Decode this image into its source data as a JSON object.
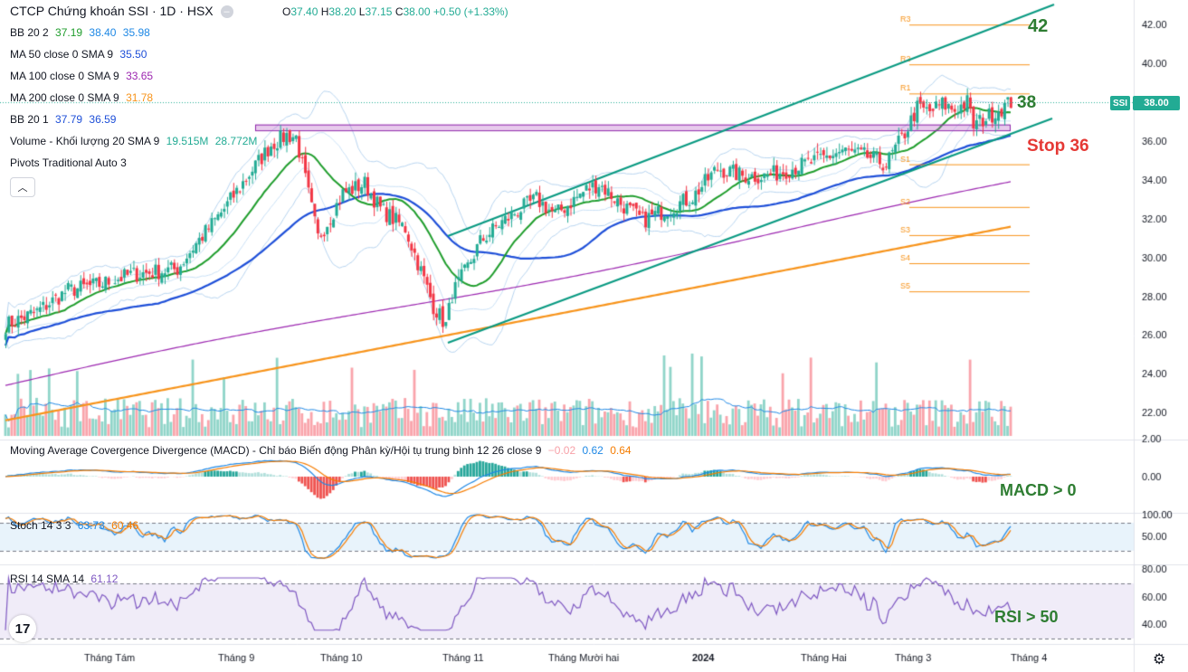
{
  "header": {
    "title": "CTCP Chứng khoán SSI · 1D · HSX",
    "ohlc": {
      "o_label": "O",
      "o": "37.40",
      "h_label": "H",
      "h": "38.20",
      "l_label": "L",
      "l": "37.15",
      "c_label": "C",
      "c": "38.00",
      "change": "+0.50 (+1.33%)"
    }
  },
  "legends": {
    "bb2": {
      "label": "BB 20 2",
      "v1": "37.19",
      "v2": "38.40",
      "v3": "35.98"
    },
    "ma50": {
      "label": "MA 50 close 0 SMA 9",
      "v": "35.50"
    },
    "ma100": {
      "label": "MA 100 close 0 SMA 9",
      "v": "33.65"
    },
    "ma200": {
      "label": "MA 200 close 0 SMA 9",
      "v": "31.78"
    },
    "bb1": {
      "label": "BB 20 1",
      "v1": "37.79",
      "v2": "36.59"
    },
    "volume": {
      "label": "Volume - Khối lượng 20 SMA 9",
      "v1": "19.515M",
      "v2": "28.772M"
    },
    "pivots": {
      "label": "Pivots Traditional Auto 3"
    },
    "macd": {
      "label": "Moving Average Covergence Divergence (MACD) - Chỉ báo Biến động Phân kỳ/Hội tụ trung bình 12 26 close 9",
      "v1": "−0.02",
      "v2": "0.62",
      "v3": "0.64"
    },
    "stoch": {
      "label": "Stoch 14 3 3",
      "v1": "63.73",
      "v2": "60.46"
    },
    "rsi": {
      "label": "RSI 14 SMA 14",
      "v": "61.12"
    }
  },
  "symbol_tag": "SSI",
  "last_price": "38.00",
  "annotations": {
    "a42": "42",
    "a38": "38",
    "stop": "Stop 36",
    "macd": "MACD > 0",
    "rsi": "RSI > 50"
  },
  "pivot_labels": [
    "R3",
    "R2",
    "R1",
    "S1",
    "S2",
    "S3",
    "S4",
    "S5"
  ],
  "logo_text": "17",
  "colors": {
    "up": "#22ab94",
    "down": "#f23645",
    "accent": "#089981",
    "ma50": "#1e4fd8",
    "ma100": "#9c27b0",
    "ma200": "#f7931a",
    "bb": "#1f9d2c",
    "pivot": "#f7931a"
  },
  "chart_data": {
    "type": "candlestick",
    "price_axis": {
      "ticks": [
        "42.00",
        "40.00",
        "38.00",
        "36.00",
        "34.00",
        "32.00",
        "30.00",
        "28.00",
        "26.00",
        "24.00",
        "22.00"
      ]
    },
    "time_axis": {
      "ticks": [
        "Tháng Tám",
        "Tháng 9",
        "Tháng 10",
        "Tháng 11",
        "Tháng Mười hai",
        "2024",
        "Tháng Hai",
        "Tháng 3",
        "Tháng 4"
      ]
    },
    "macd_axis": {
      "ticks": [
        "2.00",
        "0.00"
      ]
    },
    "stoch_axis": {
      "ticks": [
        "100.00",
        "50.00"
      ]
    },
    "rsi_axis": {
      "ticks": [
        "80.00",
        "60.00",
        "40.00"
      ]
    },
    "pivots": {
      "R3": 42.0,
      "R2": 39.95,
      "R1": 38.45,
      "S1": 34.8,
      "S2": 32.6,
      "S3": 31.15,
      "S4": 29.7,
      "S5": 28.25
    },
    "horizontal_zone": {
      "from": 36.55,
      "to": 36.85
    },
    "channel": {
      "upper_start": [
        31.1
      ],
      "lower_start": [
        25.6
      ]
    },
    "close_anchor_points": [
      [
        0,
        26.5
      ],
      [
        10,
        27.2
      ],
      [
        20,
        28.3
      ],
      [
        30,
        28.6
      ],
      [
        40,
        29.1
      ],
      [
        50,
        29.3
      ],
      [
        55,
        29.4
      ],
      [
        60,
        30.5
      ],
      [
        70,
        32.5
      ],
      [
        78,
        34.3
      ],
      [
        85,
        35.8
      ],
      [
        90,
        36.3
      ],
      [
        93,
        36.2
      ],
      [
        96,
        34.0
      ],
      [
        100,
        31.0
      ],
      [
        103,
        31.8
      ],
      [
        108,
        33.3
      ],
      [
        115,
        33.8
      ],
      [
        120,
        32.5
      ],
      [
        128,
        31.5
      ],
      [
        133,
        29.3
      ],
      [
        137,
        27.5
      ],
      [
        141,
        26.5
      ],
      [
        143,
        28.1
      ],
      [
        148,
        29.5
      ],
      [
        152,
        30.8
      ],
      [
        158,
        31.7
      ],
      [
        164,
        32.4
      ],
      [
        170,
        33.0
      ],
      [
        176,
        32.2
      ],
      [
        180,
        32.7
      ],
      [
        186,
        33.5
      ],
      [
        190,
        33.8
      ],
      [
        196,
        32.9
      ],
      [
        204,
        31.9
      ],
      [
        212,
        32.5
      ],
      [
        220,
        33.1
      ],
      [
        228,
        34.6
      ],
      [
        236,
        34.2
      ],
      [
        244,
        34.2
      ],
      [
        252,
        34.6
      ],
      [
        260,
        35.0
      ],
      [
        268,
        35.5
      ],
      [
        276,
        35.2
      ],
      [
        282,
        34.8
      ],
      [
        288,
        36.4
      ],
      [
        292,
        37.7
      ],
      [
        296,
        37.5
      ],
      [
        300,
        37.9
      ],
      [
        304,
        37.6
      ],
      [
        308,
        38.0
      ],
      [
        310,
        36.8
      ],
      [
        314,
        37.2
      ],
      [
        318,
        37.6
      ],
      [
        322,
        38.0
      ]
    ]
  }
}
